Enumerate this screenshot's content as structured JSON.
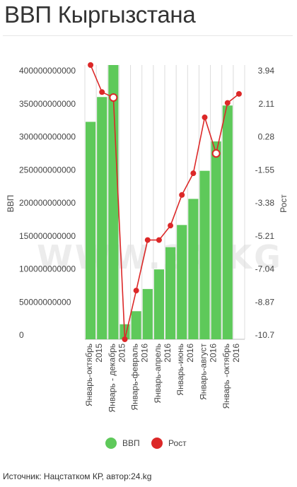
{
  "title": "ВВП Кыргызстана",
  "source": "Источник: Нацстатком КР, автор:24.kg",
  "watermark": "WWW.24.KG",
  "chart_data": {
    "type": "bar",
    "categories": [
      "Январь-октябрь 2015",
      "",
      "Январь - декабрь 2015",
      "",
      "Январь-февраль 2016",
      "",
      "Январь-апрель 2016",
      "",
      "Январь-июнь 2016",
      "",
      "Январь-август 2016",
      "",
      "Январь -октябрь 2016",
      ""
    ],
    "series": [
      {
        "name": "ВВП",
        "axis": "left",
        "color": "#5ec95a",
        "values": [
          333000000000,
          371000000000,
          420000000000,
          23000000000,
          43000000000,
          77000000000,
          107000000000,
          141000000000,
          175000000000,
          215000000000,
          258000000000,
          303000000000,
          358000000000,
          null
        ]
      },
      {
        "name": "Рост",
        "axis": "right",
        "color": "#dc2828",
        "values": [
          4.5,
          3.0,
          2.7,
          -10.7,
          -8.0,
          -5.2,
          -5.2,
          -4.4,
          -2.7,
          -1.5,
          1.6,
          -0.4,
          2.4,
          2.9
        ]
      }
    ],
    "hollow_points": [
      2,
      11
    ],
    "ylabel": "ВВП",
    "y2label": "Рост",
    "yticks": [
      "0",
      "50000000000",
      "100000000000",
      "150000000000",
      "200000000000",
      "250000000000",
      "300000000000",
      "350000000000",
      "400000000000"
    ],
    "y2ticks": [
      "-10.7",
      "-8.87",
      "-7.04",
      "-5.21",
      "-3.38",
      "-1.55",
      "0.28",
      "2.11",
      "3.94"
    ],
    "ylim": [
      0,
      420000000000
    ],
    "y2lim": [
      -10.7,
      4.5
    ],
    "grid": true,
    "legend": "bottom"
  }
}
